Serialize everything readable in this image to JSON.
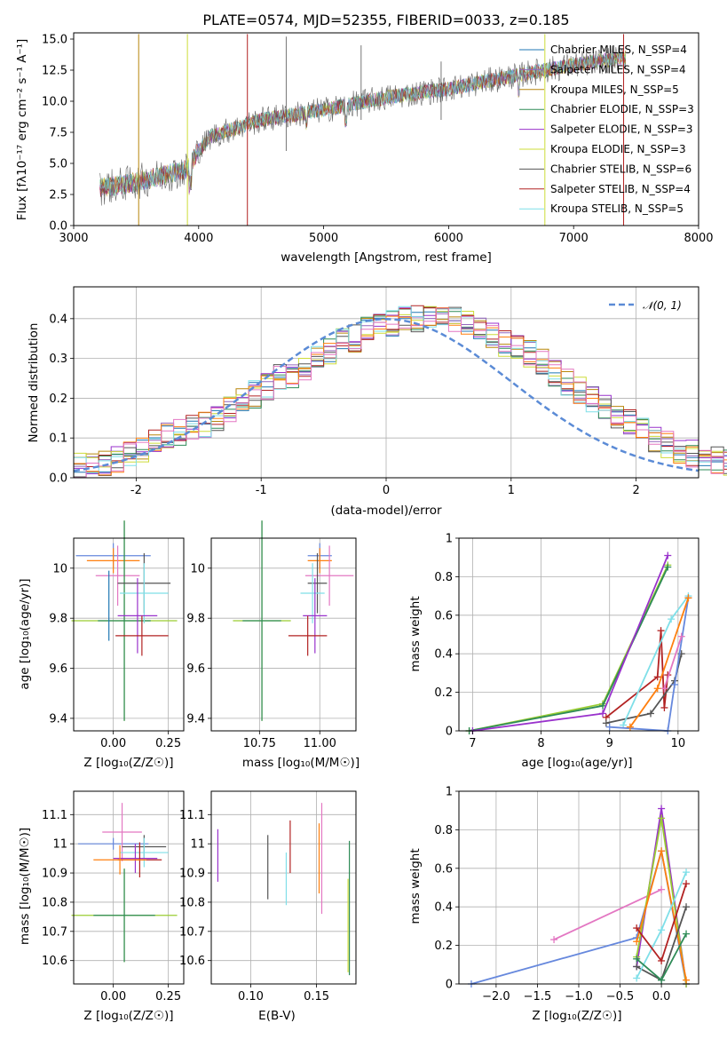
{
  "chart_data": [
    {
      "id": "spectrum",
      "type": "line",
      "title": "PLATE=0574, MJD=52355, FIBERID=0033, z=0.185",
      "xlabel": "wavelength [Angstrom, rest frame]",
      "ylabel": "Flux [fλ10⁻¹⁷ erg cm⁻² s⁻¹ A⁻¹]",
      "xlim": [
        3000,
        8000
      ],
      "ylim": [
        0,
        15.5
      ],
      "xticks": [
        3000,
        4000,
        5000,
        6000,
        7000,
        8000
      ],
      "yticks": [
        0.0,
        2.5,
        5.0,
        7.5,
        10.0,
        12.5,
        15.0
      ],
      "ytick_labels": [
        "0.0",
        "2.5",
        "5.0",
        "7.5",
        "10.0",
        "12.5",
        "15.0"
      ],
      "grid": false,
      "legend_position": "top-right",
      "data_envelope": {
        "x": [
          3200,
          3500,
          3900,
          4000,
          4100,
          4500,
          5000,
          5500,
          6000,
          6500,
          7000,
          7400
        ],
        "y": [
          3.0,
          3.5,
          4.5,
          6.0,
          7.2,
          8.5,
          9.3,
          10.3,
          11.0,
          12.0,
          12.9,
          13.5
        ]
      },
      "series": [
        {
          "name": "Chabrier MILES, N_SSP=4",
          "color": "#1f77b4"
        },
        {
          "name": "Salpeter MILES, N_SSP=4",
          "color": "#9467bd"
        },
        {
          "name": "Kroupa MILES, N_SSP=5",
          "color": "#b8860b"
        },
        {
          "name": "Chabrier ELODIE, N_SSP=3",
          "color": "#2e8b57"
        },
        {
          "name": "Salpeter ELODIE, N_SSP=3",
          "color": "#9932cc"
        },
        {
          "name": "Kroupa ELODIE, N_SSP=3",
          "color": "#cddc39"
        },
        {
          "name": "Chabrier STELIB, N_SSP=6",
          "color": "#555555"
        },
        {
          "name": "Salpeter STELIB, N_SSP=4",
          "color": "#b22222"
        },
        {
          "name": "Kroupa STELIB, N_SSP=5",
          "color": "#7fdfe8"
        }
      ]
    },
    {
      "id": "residuals",
      "type": "line",
      "xlabel": "(data-model)/error",
      "ylabel": "Normed distribution",
      "xlim": [
        -2.5,
        2.5
      ],
      "ylim": [
        0,
        0.48
      ],
      "xticks": [
        -2,
        -1,
        0,
        1,
        2
      ],
      "yticks": [
        0.0,
        0.1,
        0.2,
        0.3,
        0.4
      ],
      "ytick_labels": [
        "0.0",
        "0.1",
        "0.2",
        "0.3",
        "0.4"
      ],
      "grid": true,
      "legend_position": "top-right",
      "legend": "𝒩(0, 1)",
      "bin_edges_start": -2.5,
      "bin_width": 0.1,
      "histogram_colors": [
        "#1f77b4",
        "#9467bd",
        "#b8860b",
        "#2e8b57",
        "#9932cc",
        "#cddc39",
        "#555555",
        "#b22222",
        "#7fdfe8",
        "#ff7f0e",
        "#e377c2"
      ],
      "histogram_mean": [
        0.03,
        0.035,
        0.04,
        0.045,
        0.055,
        0.075,
        0.095,
        0.105,
        0.115,
        0.125,
        0.135,
        0.15,
        0.17,
        0.19,
        0.21,
        0.23,
        0.25,
        0.26,
        0.28,
        0.3,
        0.32,
        0.34,
        0.35,
        0.37,
        0.38,
        0.39,
        0.4,
        0.4,
        0.41,
        0.4,
        0.4,
        0.39,
        0.38,
        0.36,
        0.34,
        0.33,
        0.31,
        0.29,
        0.26,
        0.24,
        0.22,
        0.2,
        0.18,
        0.16,
        0.14,
        0.12,
        0.1,
        0.085,
        0.07,
        0.06,
        0.05,
        0.045,
        0.04,
        0.035,
        0.03,
        0.025
      ]
    },
    {
      "id": "age-vs-Z",
      "type": "scatter",
      "xlabel": "Z [log₁₀(Z/Z☉)]",
      "ylabel": "age  [log₁₀(age/yr)]",
      "xlim": [
        -0.18,
        0.32
      ],
      "ylim": [
        9.35,
        10.12
      ],
      "xticks": [
        0.0,
        0.25
      ],
      "xtick_labels": [
        "0.00",
        "0.25"
      ],
      "yticks": [
        9.4,
        9.6,
        9.8,
        10.0
      ],
      "grid": true,
      "points": [
        {
          "x": 0.0,
          "y": 10.05,
          "xerr": 0.17,
          "yerr": 0.05,
          "color": "#6688dd"
        },
        {
          "x": 0.0,
          "y": 10.03,
          "xerr": 0.12,
          "yerr": 0.05,
          "color": "#ff7f0e"
        },
        {
          "x": 0.02,
          "y": 9.97,
          "xerr": 0.1,
          "yerr": 0.12,
          "color": "#e377c2"
        },
        {
          "x": 0.05,
          "y": 9.79,
          "xerr": 0.24,
          "yerr": 0.4,
          "color": "#9acd32"
        },
        {
          "x": 0.05,
          "y": 9.79,
          "xerr": 0.12,
          "yerr": 0.4,
          "color": "#2e8b57"
        },
        {
          "x": 0.14,
          "y": 9.94,
          "xerr": 0.12,
          "yerr": 0.12,
          "color": "#555555"
        },
        {
          "x": 0.14,
          "y": 9.9,
          "xerr": 0.11,
          "yerr": 0.12,
          "color": "#7fdfe8"
        },
        {
          "x": 0.11,
          "y": 9.81,
          "xerr": 0.09,
          "yerr": 0.15,
          "color": "#9932cc"
        },
        {
          "x": 0.13,
          "y": 9.73,
          "xerr": 0.12,
          "yerr": 0.08,
          "color": "#b22222"
        },
        {
          "x": -0.02,
          "y": 9.85,
          "xerr": 0.0,
          "yerr": 0.14,
          "color": "#1f77b4"
        }
      ]
    },
    {
      "id": "age-vs-mass",
      "type": "scatter",
      "xlabel": "mass [log₁₀(M/M☉)]",
      "xlim": [
        10.55,
        11.15
      ],
      "ylim": [
        9.35,
        10.12
      ],
      "xticks": [
        10.75,
        11.0
      ],
      "xtick_labels": [
        "10.75",
        "11.00"
      ],
      "yticks": [
        9.4,
        9.6,
        9.8,
        10.0
      ],
      "grid": true,
      "points": [
        {
          "x": 11.0,
          "y": 10.05,
          "xerr": 0.05,
          "yerr": 0.05,
          "color": "#6688dd"
        },
        {
          "x": 11.0,
          "y": 10.03,
          "xerr": 0.05,
          "yerr": 0.05,
          "color": "#ff7f0e"
        },
        {
          "x": 11.04,
          "y": 9.97,
          "xerr": 0.1,
          "yerr": 0.12,
          "color": "#e377c2"
        },
        {
          "x": 10.76,
          "y": 9.79,
          "xerr": 0.12,
          "yerr": 0.4,
          "color": "#9acd32"
        },
        {
          "x": 10.76,
          "y": 9.79,
          "xerr": 0.08,
          "yerr": 0.4,
          "color": "#2e8b57"
        },
        {
          "x": 10.99,
          "y": 9.94,
          "xerr": 0.04,
          "yerr": 0.12,
          "color": "#555555"
        },
        {
          "x": 10.97,
          "y": 9.9,
          "xerr": 0.05,
          "yerr": 0.12,
          "color": "#7fdfe8"
        },
        {
          "x": 10.98,
          "y": 9.81,
          "xerr": 0.05,
          "yerr": 0.15,
          "color": "#9932cc"
        },
        {
          "x": 10.95,
          "y": 9.73,
          "xerr": 0.08,
          "yerr": 0.08,
          "color": "#b22222"
        }
      ]
    },
    {
      "id": "weight-vs-age",
      "type": "line",
      "xlabel": "age  [log₁₀(age/yr)]",
      "ylabel": "mass weight",
      "xlim": [
        6.8,
        10.3
      ],
      "ylim": [
        0,
        1.0
      ],
      "xticks": [
        7,
        8,
        9,
        10
      ],
      "yticks": [
        0.0,
        0.2,
        0.4,
        0.6,
        0.8,
        1.0
      ],
      "grid": true,
      "series": [
        {
          "color": "#9acd32",
          "x": [
            6.95,
            8.9,
            9.85
          ],
          "y": [
            0.0,
            0.14,
            0.86
          ]
        },
        {
          "color": "#2e8b57",
          "x": [
            6.95,
            8.9,
            9.85
          ],
          "y": [
            0.0,
            0.13,
            0.85
          ]
        },
        {
          "color": "#9932cc",
          "x": [
            7.0,
            8.9,
            9.85
          ],
          "y": [
            0.0,
            0.09,
            0.91
          ]
        },
        {
          "color": "#b22222",
          "x": [
            8.95,
            9.7,
            9.75,
            9.8,
            9.85
          ],
          "y": [
            0.07,
            0.28,
            0.52,
            0.12,
            0.29
          ]
        },
        {
          "color": "#555555",
          "x": [
            8.95,
            9.6,
            9.95,
            10.05
          ],
          "y": [
            0.04,
            0.09,
            0.26,
            0.4
          ]
        },
        {
          "color": "#7fdfe8",
          "x": [
            9.2,
            9.9,
            10.15
          ],
          "y": [
            0.03,
            0.58,
            0.7
          ]
        },
        {
          "color": "#6688dd",
          "x": [
            9.0,
            9.85,
            9.95,
            10.15
          ],
          "y": [
            0.02,
            0.0,
            0.24,
            0.69
          ]
        },
        {
          "color": "#ff7f0e",
          "x": [
            9.3,
            9.7,
            10.15
          ],
          "y": [
            0.02,
            0.22,
            0.69
          ]
        },
        {
          "color": "#e377c2",
          "x": [
            9.8,
            10.05
          ],
          "y": [
            0.22,
            0.49
          ]
        }
      ]
    },
    {
      "id": "mass-vs-Z",
      "type": "scatter",
      "xlabel": "Z [log₁₀(Z/Z☉)]",
      "ylabel": "mass [log₁₀(M/M☉)]",
      "xlim": [
        -0.18,
        0.32
      ],
      "ylim": [
        10.52,
        11.18
      ],
      "xticks": [
        0.0,
        0.25
      ],
      "xtick_labels": [
        "0.00",
        "0.25"
      ],
      "yticks": [
        10.6,
        10.7,
        10.8,
        10.9,
        11.0,
        11.1
      ],
      "grid": true,
      "points": [
        {
          "x": 0.0,
          "y": 11.0,
          "xerr": 0.16,
          "yerr": 0.02,
          "color": "#6688dd"
        },
        {
          "x": 0.04,
          "y": 11.04,
          "xerr": 0.09,
          "yerr": 0.1,
          "color": "#e377c2"
        },
        {
          "x": 0.14,
          "y": 10.99,
          "xerr": 0.1,
          "yerr": 0.04,
          "color": "#555555"
        },
        {
          "x": 0.14,
          "y": 10.97,
          "xerr": 0.11,
          "yerr": 0.05,
          "color": "#7fdfe8"
        },
        {
          "x": 0.1,
          "y": 10.95,
          "xerr": 0.1,
          "yerr": 0.05,
          "color": "#9932cc"
        },
        {
          "x": 0.12,
          "y": 10.945,
          "xerr": 0.1,
          "yerr": 0.06,
          "color": "#b22222"
        },
        {
          "x": 0.03,
          "y": 10.945,
          "xerr": 0.12,
          "yerr": 0.05,
          "color": "#ff7f0e"
        },
        {
          "x": 0.05,
          "y": 10.755,
          "xerr": 0.24,
          "yerr": 0.16,
          "color": "#9acd32"
        },
        {
          "x": 0.05,
          "y": 10.755,
          "xerr": 0.14,
          "yerr": 0.16,
          "color": "#2e8b57"
        }
      ]
    },
    {
      "id": "mass-vs-EBV",
      "type": "scatter",
      "xlabel": "E(B-V)",
      "xlim": [
        0.07,
        0.18
      ],
      "ylim": [
        10.52,
        11.18
      ],
      "xticks": [
        0.1,
        0.15
      ],
      "xtick_labels": [
        "0.10",
        "0.15"
      ],
      "yticks": [
        10.6,
        10.7,
        10.8,
        10.9,
        11.0,
        11.1
      ],
      "grid": true,
      "points": [
        {
          "x": 0.075,
          "y": 10.96,
          "yerr": 0.09,
          "color": "#9932cc"
        },
        {
          "x": 0.113,
          "y": 10.92,
          "yerr": 0.11,
          "color": "#555555"
        },
        {
          "x": 0.127,
          "y": 10.88,
          "yerr": 0.09,
          "color": "#7fdfe8"
        },
        {
          "x": 0.13,
          "y": 10.99,
          "yerr": 0.09,
          "color": "#b22222"
        },
        {
          "x": 0.152,
          "y": 10.95,
          "yerr": 0.12,
          "color": "#ff7f0e"
        },
        {
          "x": 0.154,
          "y": 10.95,
          "yerr": 0.19,
          "color": "#e377c2"
        },
        {
          "x": 0.175,
          "y": 10.78,
          "yerr": 0.23,
          "color": "#2e8b57"
        },
        {
          "x": 0.174,
          "y": 10.72,
          "yerr": 0.16,
          "color": "#cddc39"
        }
      ]
    },
    {
      "id": "weight-vs-Z",
      "type": "line",
      "xlabel": "Z [log₁₀(Z/Z☉)]",
      "ylabel": "mass weight",
      "xlim": [
        -2.45,
        0.45
      ],
      "ylim": [
        0,
        1.0
      ],
      "xticks": [
        -2.0,
        -1.5,
        -1.0,
        -0.5,
        0.0
      ],
      "xtick_labels": [
        "−2.0",
        "−1.5",
        "−1.0",
        "−0.5",
        "0.0"
      ],
      "yticks": [
        0.0,
        0.2,
        0.4,
        0.6,
        0.8,
        1.0
      ],
      "grid": true,
      "series": [
        {
          "color": "#6688dd",
          "x": [
            -2.3,
            -0.3,
            0.0,
            0.3
          ],
          "y": [
            0.0,
            0.24,
            0.69,
            0.0
          ]
        },
        {
          "color": "#e377c2",
          "x": [
            -1.3,
            0.0
          ],
          "y": [
            0.23,
            0.49
          ]
        },
        {
          "color": "#9932cc",
          "x": [
            -0.3,
            0.0,
            0.3
          ],
          "y": [
            0.09,
            0.91,
            0.0
          ]
        },
        {
          "color": "#9acd32",
          "x": [
            -0.3,
            0.0,
            0.3
          ],
          "y": [
            0.14,
            0.86,
            0.0
          ]
        },
        {
          "color": "#ff7f0e",
          "x": [
            -0.3,
            0.0,
            0.3
          ],
          "y": [
            0.22,
            0.69,
            0.02
          ]
        },
        {
          "color": "#555555",
          "x": [
            -0.3,
            0.0,
            0.3
          ],
          "y": [
            0.09,
            0.02,
            0.4
          ]
        },
        {
          "color": "#7fdfe8",
          "x": [
            -0.3,
            0.0,
            0.3
          ],
          "y": [
            0.03,
            0.28,
            0.58
          ]
        },
        {
          "color": "#b22222",
          "x": [
            -0.3,
            0.0,
            0.3
          ],
          "y": [
            0.29,
            0.12,
            0.52
          ]
        },
        {
          "color": "#2e8b57",
          "x": [
            -0.3,
            0.0,
            0.3
          ],
          "y": [
            0.13,
            0.02,
            0.26
          ]
        }
      ]
    }
  ]
}
